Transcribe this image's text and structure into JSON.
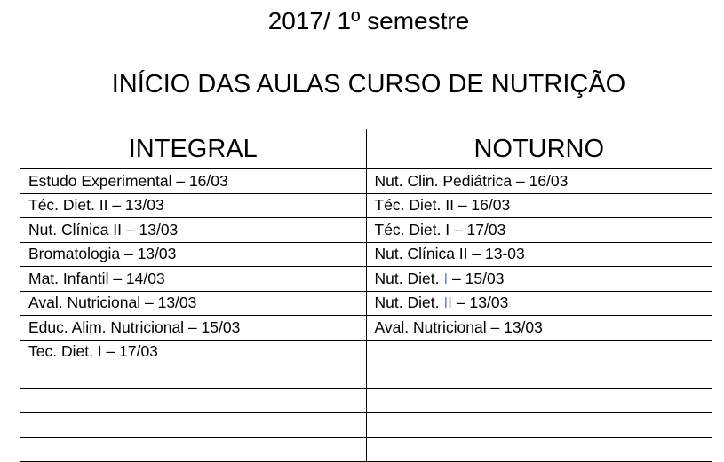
{
  "header": {
    "title": "2017/ 1º semestre",
    "subtitle": "INÍCIO DAS AULAS CURSO DE NUTRIÇÃO"
  },
  "table": {
    "columns": [
      "INTEGRAL",
      "NOTURNO"
    ],
    "integral": [
      "Estudo Experimental – 16/03",
      "Téc. Diet. II – 13/03",
      "Nut. Clínica II – 13/03",
      "Bromatologia – 13/03",
      "Mat. Infantil – 14/03",
      "Aval. Nutricional – 13/03",
      "Educ. Alim. Nutricional – 15/03",
      "Tec. Diet. I – 17/03"
    ],
    "noturno": [
      {
        "pre": "Nut. Clin. Pediátrica – 16/03"
      },
      {
        "pre": "Téc. Diet. II – 16/03"
      },
      {
        "pre": "Téc. Diet. I – 17/03"
      },
      {
        "pre": "Nut. Clínica II – 13-03"
      },
      {
        "pre": "Nut. Diet. ",
        "acc": "I",
        "post": " – 15/03"
      },
      {
        "pre": "Nut. Diet. ",
        "acc": "II",
        "post": " – 13/03"
      },
      {
        "pre": "Aval. Nutricional – 13/03"
      }
    ]
  },
  "colors": {
    "accent_text": "#6a8fd0"
  }
}
